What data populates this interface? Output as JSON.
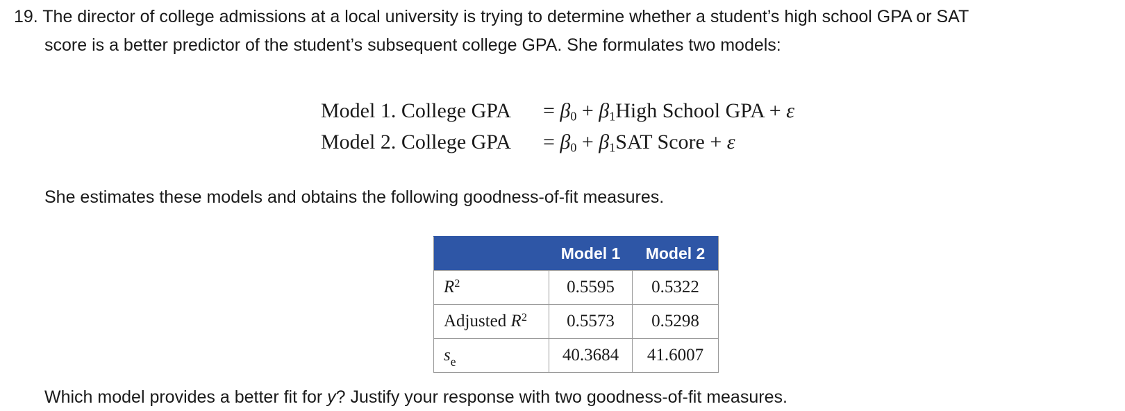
{
  "question": {
    "number": "19.",
    "line1": "The director of college admissions at a local university is trying to determine whether a student’s high school GPA or SAT",
    "line2": "score is a better predictor of the student’s subsequent college GPA. She formulates two models:"
  },
  "models": [
    {
      "lhs": "Model 1. College GPA",
      "predictor": "High School GPA"
    },
    {
      "lhs": "Model 2. College GPA",
      "predictor": "SAT Score"
    }
  ],
  "estimate_text": "She estimates these models and obtains the following goodness-of-fit measures.",
  "table": {
    "headers": [
      "",
      "Model 1",
      "Model 2"
    ],
    "rows": [
      {
        "label": "R",
        "label_sup": "2",
        "label_prefix": "",
        "model1": "0.5595",
        "model2": "0.5322"
      },
      {
        "label": "R",
        "label_sup": "2",
        "label_prefix": "Adjusted ",
        "model1": "0.5573",
        "model2": "0.5298"
      },
      {
        "label": "s",
        "label_sub": "e",
        "label_prefix": "",
        "model1": "40.3684",
        "model2": "41.6007"
      }
    ]
  },
  "final_question": {
    "before": "Which model provides a better fit for ",
    "variable": "y",
    "after": "? Justify your response with two goodness-of-fit measures."
  },
  "colors": {
    "table_header_bg": "#2e56a6",
    "table_header_text": "#ffffff",
    "border": "#9a9a9a"
  }
}
